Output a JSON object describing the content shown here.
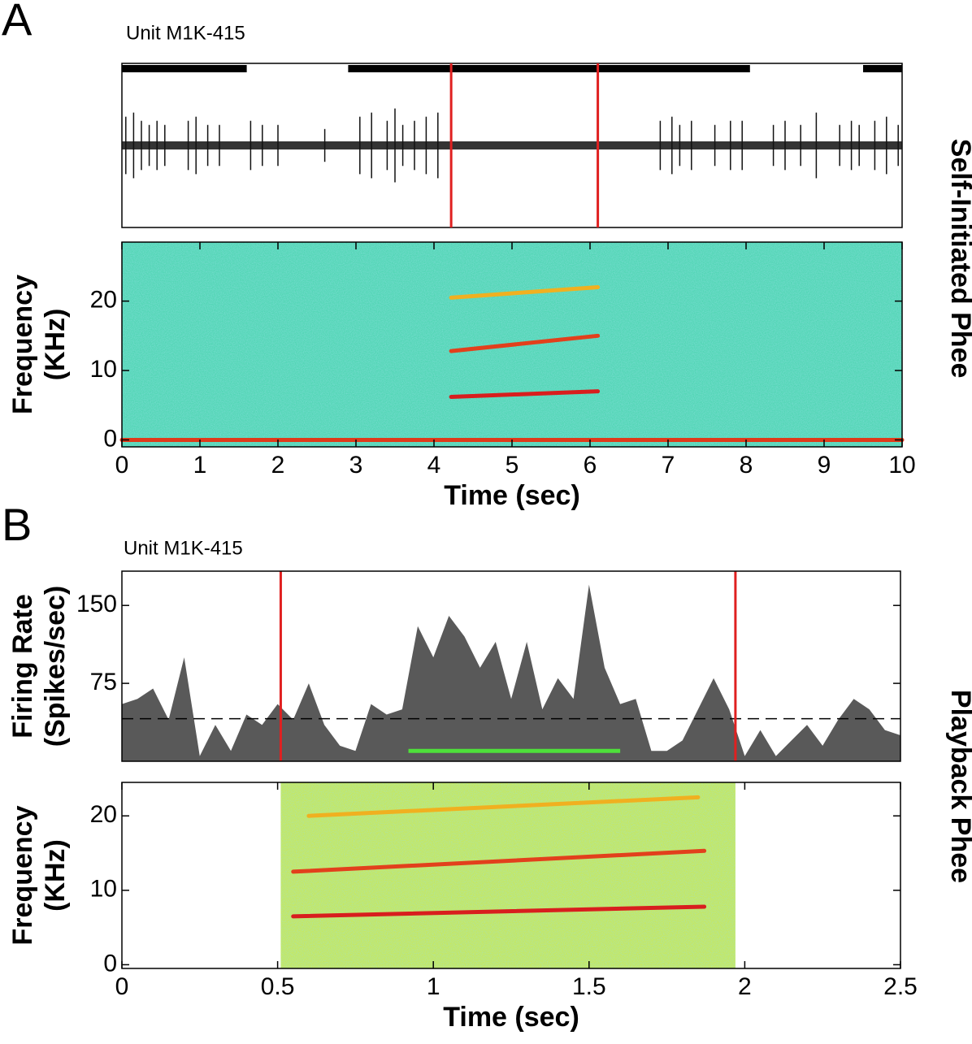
{
  "panels": [
    {
      "label": "A",
      "unit": "Unit M1K-415",
      "side_label": "Self-Initiated Phee"
    },
    {
      "label": "B",
      "unit": "Unit M1K-415",
      "side_label": "Playback Phee"
    }
  ],
  "chart_data": [
    {
      "type": "trace",
      "xlim": [
        0,
        10
      ],
      "ylim": [
        -2,
        2
      ],
      "color": "#111111",
      "marker_color": "#e02020",
      "bars": [
        [
          0,
          1.6
        ],
        [
          2.9,
          8.05
        ],
        [
          9.5,
          10
        ]
      ],
      "markers": [
        4.22,
        6.1
      ],
      "spike_x": [
        0.05,
        0.15,
        0.25,
        0.35,
        0.45,
        0.55,
        0.85,
        0.95,
        1.1,
        1.25,
        1.65,
        1.8,
        2.0,
        2.6,
        3.05,
        3.2,
        3.4,
        3.5,
        3.6,
        3.75,
        3.9,
        4.05,
        6.9,
        7.05,
        7.15,
        7.3,
        7.6,
        7.8,
        7.95,
        8.35,
        8.5,
        8.7,
        8.9,
        9.2,
        9.35,
        9.45,
        9.65,
        9.8,
        9.95
      ],
      "spike_amp": [
        0.7,
        0.8,
        0.6,
        0.5,
        0.6,
        0.5,
        0.6,
        0.7,
        0.5,
        0.5,
        0.6,
        0.5,
        0.5,
        0.4,
        0.7,
        0.8,
        0.6,
        0.9,
        0.5,
        0.6,
        0.7,
        0.8,
        0.6,
        0.7,
        0.5,
        0.6,
        0.5,
        0.6,
        0.6,
        0.5,
        0.6,
        0.5,
        0.8,
        0.5,
        0.6,
        0.5,
        0.6,
        0.7,
        0.5
      ]
    },
    {
      "type": "spectrogram",
      "xlim": [
        0,
        10
      ],
      "xticks": [
        0,
        1,
        2,
        3,
        4,
        5,
        6,
        7,
        8,
        9,
        10
      ],
      "ylim": [
        -1,
        28.5
      ],
      "yticks": [
        0,
        10,
        20
      ],
      "xlabel": "Time (sec)",
      "ylabel": [
        "Frequency",
        "(KHz)"
      ],
      "background": "#52d6b4",
      "span": [
        0,
        10
      ],
      "series": [
        {
          "color": "#d81e1e",
          "x": [
            4.22,
            6.1
          ],
          "values": [
            6.2,
            7.0
          ]
        },
        {
          "color": "#e2401c",
          "x": [
            4.22,
            6.1
          ],
          "values": [
            12.8,
            15.0
          ]
        },
        {
          "color": "#f0b020",
          "x": [
            4.22,
            6.1
          ],
          "values": [
            20.5,
            22.0
          ]
        },
        {
          "color": "#e03a1a",
          "x": [
            0,
            10
          ],
          "values": [
            0,
            0
          ]
        }
      ]
    },
    {
      "type": "area",
      "xlim": [
        0,
        2.5
      ],
      "ylim": [
        0,
        183
      ],
      "yticks": [
        75,
        150
      ],
      "ylabel": [
        "Firing Rate",
        "(Spikes/sec)"
      ],
      "color": "#595959",
      "marker_color": "#e02020",
      "markers": [
        0.51,
        1.97
      ],
      "baseline": 41,
      "highlight": {
        "x": [
          0.92,
          1.6
        ],
        "value": 10,
        "color": "#4ee03a"
      },
      "x": [
        0,
        0.05,
        0.1,
        0.15,
        0.2,
        0.25,
        0.3,
        0.35,
        0.4,
        0.45,
        0.5,
        0.55,
        0.6,
        0.65,
        0.7,
        0.75,
        0.8,
        0.85,
        0.9,
        0.95,
        1.0,
        1.05,
        1.1,
        1.15,
        1.2,
        1.25,
        1.3,
        1.35,
        1.4,
        1.45,
        1.5,
        1.55,
        1.6,
        1.65,
        1.7,
        1.75,
        1.8,
        1.85,
        1.9,
        1.95,
        2.0,
        2.05,
        2.1,
        2.15,
        2.2,
        2.25,
        2.3,
        2.35,
        2.4,
        2.45,
        2.5
      ],
      "values": [
        55,
        60,
        70,
        40,
        100,
        5,
        35,
        10,
        45,
        35,
        55,
        40,
        75,
        35,
        15,
        10,
        55,
        45,
        50,
        130,
        100,
        140,
        120,
        90,
        115,
        60,
        115,
        50,
        80,
        60,
        170,
        90,
        55,
        60,
        10,
        10,
        20,
        50,
        80,
        50,
        5,
        30,
        5,
        20,
        35,
        15,
        40,
        60,
        50,
        30,
        25
      ]
    },
    {
      "type": "spectrogram",
      "xlim": [
        0,
        2.5
      ],
      "xticks": [
        0,
        0.5,
        1,
        1.5,
        2,
        2.5
      ],
      "ylim": [
        -0.5,
        24.5
      ],
      "yticks": [
        0,
        10,
        20
      ],
      "xlabel": "Time (sec)",
      "ylabel": [
        "Frequency",
        "(KHz)"
      ],
      "background": "#c8e85a",
      "span": [
        0.51,
        1.97
      ],
      "series": [
        {
          "color": "#d81e1e",
          "x": [
            0.55,
            1.87
          ],
          "values": [
            6.5,
            7.8
          ]
        },
        {
          "color": "#e2401c",
          "x": [
            0.55,
            1.87
          ],
          "values": [
            12.5,
            15.3
          ]
        },
        {
          "color": "#f0b020",
          "x": [
            0.6,
            1.85
          ],
          "values": [
            20,
            22.5
          ]
        }
      ]
    }
  ]
}
